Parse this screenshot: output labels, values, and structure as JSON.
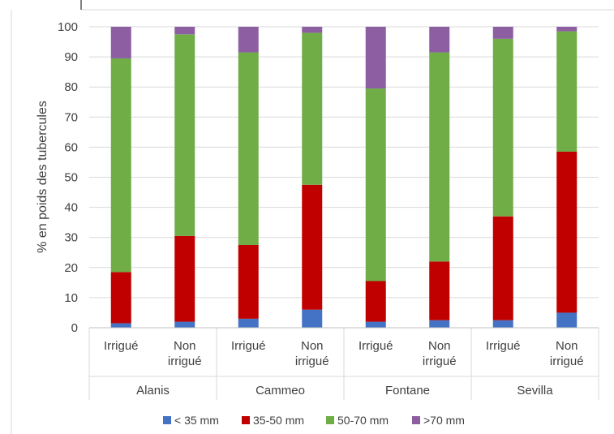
{
  "chart_data": {
    "type": "bar",
    "stacked": true,
    "ylabel": "% en poids des tubercules",
    "ylim": [
      0,
      100
    ],
    "yticks": [
      0,
      10,
      20,
      30,
      40,
      50,
      60,
      70,
      80,
      90,
      100
    ],
    "grid": true,
    "legend_position": "bottom",
    "groups": [
      "Alanis",
      "Cammeo",
      "Fontane",
      "Sevilla"
    ],
    "subcategories": [
      [
        "Irrigué"
      ],
      [
        "Non",
        "irrigué"
      ]
    ],
    "categories": [
      "Alanis - Irrigué",
      "Alanis - Non irrigué",
      "Cammeo - Irrigué",
      "Cammeo - Non irrigué",
      "Fontane - Irrigué",
      "Fontane - Non irrigué",
      "Sevilla - Irrigué",
      "Sevilla - Non irrigué"
    ],
    "series": [
      {
        "name": "< 35 mm",
        "color": "#4472c4",
        "values": [
          1.5,
          2.0,
          3.0,
          6.0,
          2.0,
          2.5,
          2.5,
          5.0
        ]
      },
      {
        "name": "35-50 mm",
        "color": "#c00000",
        "values": [
          17.0,
          28.5,
          24.5,
          41.5,
          13.5,
          19.5,
          34.5,
          53.5
        ]
      },
      {
        "name": "50-70 mm",
        "color": "#70ad47",
        "values": [
          71.0,
          67.0,
          64.0,
          50.5,
          64.0,
          69.5,
          59.0,
          40.0
        ]
      },
      {
        "name": ">70 mm",
        "color": "#8e5ea2",
        "values": [
          10.5,
          2.5,
          8.5,
          2.0,
          20.5,
          8.5,
          4.0,
          1.5
        ]
      }
    ]
  }
}
